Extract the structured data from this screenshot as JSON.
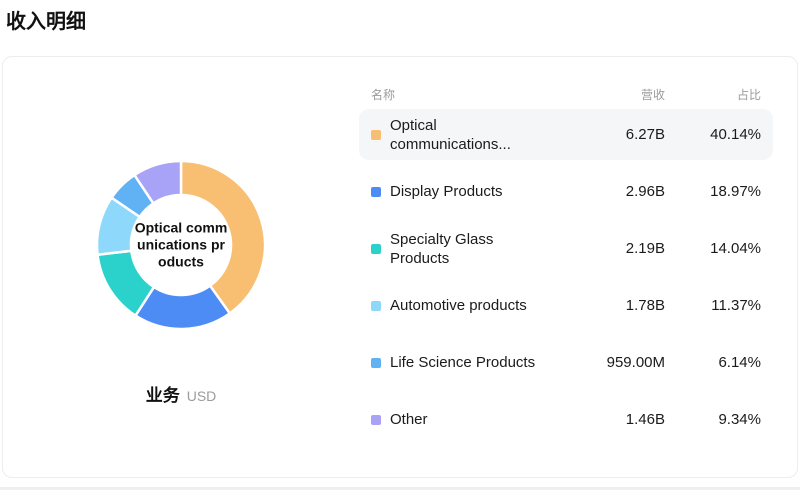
{
  "page": {
    "title": "收入明细"
  },
  "chart": {
    "center_label": "Optical communications products",
    "footer_label": "业务",
    "footer_unit": "USD"
  },
  "table": {
    "headers": [
      "名称",
      "营收",
      "占比"
    ],
    "rows": [
      {
        "name": "Optical communications...",
        "revenue": "6.27B",
        "percent": "40.14%"
      },
      {
        "name": "Display Products",
        "revenue": "2.96B",
        "percent": "18.97%"
      },
      {
        "name": "Specialty Glass Products",
        "revenue": "2.19B",
        "percent": "14.04%"
      },
      {
        "name": "Automotive products",
        "revenue": "1.78B",
        "percent": "11.37%"
      },
      {
        "name": "Life Science Products",
        "revenue": "959.00M",
        "percent": "6.14%"
      },
      {
        "name": "Other",
        "revenue": "1.46B",
        "percent": "9.34%"
      }
    ]
  },
  "chart_data": {
    "type": "pie",
    "donut": true,
    "title": "收入明细",
    "unit": "USD",
    "categories": [
      "Optical communications products",
      "Display Products",
      "Specialty Glass Products",
      "Automotive products",
      "Life Science Products",
      "Other"
    ],
    "values": [
      40.14,
      18.97,
      14.04,
      11.37,
      6.14,
      9.34
    ],
    "value_unit": "percent",
    "revenues": [
      "6.27B",
      "2.96B",
      "2.19B",
      "1.78B",
      "959.00M",
      "1.46B"
    ],
    "colors": [
      "#F8BE72",
      "#4D8CF5",
      "#2BD2CB",
      "#8DD8FB",
      "#60B2F4",
      "#A8A3F6"
    ],
    "start_angle_deg": 0,
    "direction": "clockwise",
    "legend_position": "right-table"
  }
}
